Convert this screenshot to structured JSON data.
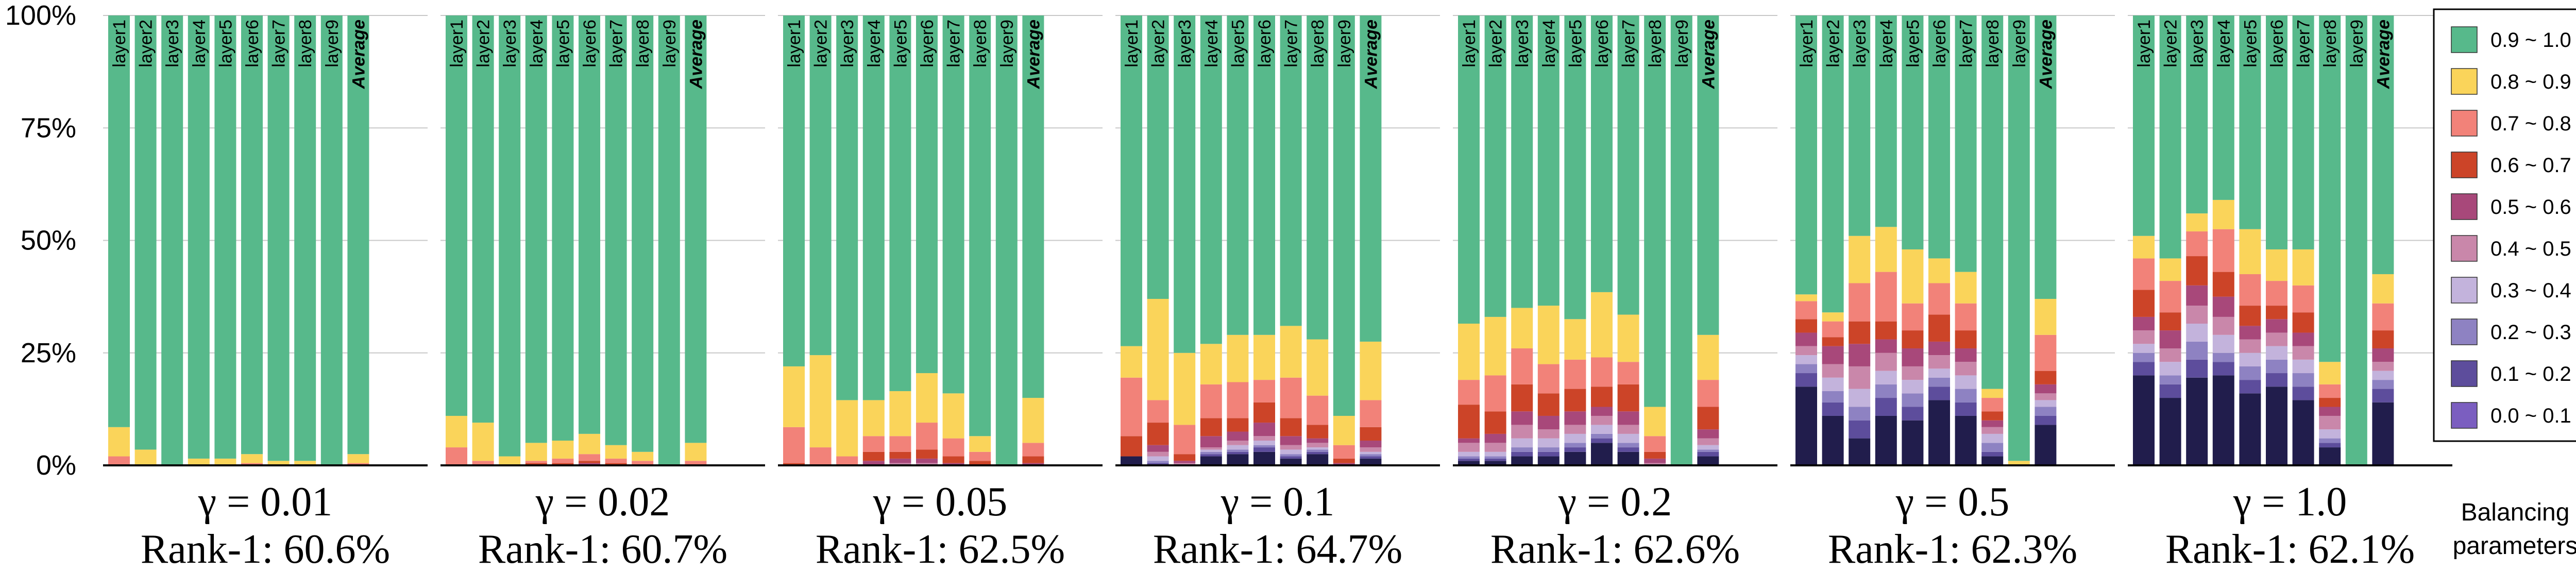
{
  "chart_data": {
    "type": "bar",
    "stacked": true,
    "percent": true,
    "categories": [
      "layer1",
      "layer2",
      "layer3",
      "layer4",
      "layer5",
      "layer6",
      "layer7",
      "layer8",
      "layer9",
      "Average"
    ],
    "ylim": [
      0,
      100
    ],
    "yticks": [
      "0%",
      "25%",
      "50%",
      "75%",
      "100%"
    ],
    "grid": true,
    "legend": {
      "title": "Balancing\nparameters",
      "placement": "right",
      "entries": [
        {
          "label": "0.9 ~ 1.0",
          "color": "#57b98b"
        },
        {
          "label": "0.8 ~ 0.9",
          "color": "#fad45a"
        },
        {
          "label": "0.7 ~ 0.8",
          "color": "#f28279"
        },
        {
          "label": "0.6 ~ 0.7",
          "color": "#cc4428"
        },
        {
          "label": "0.5 ~ 0.6",
          "color": "#a8487a"
        },
        {
          "label": "0.4 ~ 0.5",
          "color": "#c987aa"
        },
        {
          "label": "0.3 ~ 0.4",
          "color": "#c3b3dc"
        },
        {
          "label": "0.2 ~ 0.3",
          "color": "#8e82c2"
        },
        {
          "label": "0.1 ~ 0.2",
          "color": "#5d4d9c"
        },
        {
          "label": "0.0 ~ 0.1",
          "color": "#7b5ec0"
        }
      ]
    },
    "bin_order_bottom_to_top": [
      "0.0 ~ 0.1 (dark base)",
      "0.1 ~ 0.2",
      "0.2 ~ 0.3",
      "0.3 ~ 0.4",
      "0.4 ~ 0.5",
      "0.5 ~ 0.6",
      "0.6 ~ 0.7",
      "0.7 ~ 0.8",
      "0.8 ~ 0.9"
    ],
    "base_color": "#211d4c",
    "panels": [
      {
        "gamma": "γ = 0.01",
        "rank1": "Rank-1: 60.6%",
        "bars": [
          [
            0,
            0,
            0,
            0,
            0,
            0,
            0,
            2,
            6.5
          ],
          [
            0,
            0,
            0,
            0,
            0,
            0,
            0,
            0,
            3.5
          ],
          [
            0,
            0,
            0,
            0,
            0,
            0,
            0,
            0,
            0
          ],
          [
            0,
            0,
            0,
            0,
            0,
            0,
            0,
            0,
            1.5
          ],
          [
            0,
            0,
            0,
            0,
            0,
            0,
            0,
            0,
            1.5
          ],
          [
            0,
            0,
            0,
            0,
            0,
            0,
            0,
            0.5,
            2
          ],
          [
            0,
            0,
            0,
            0,
            0,
            0,
            0,
            0,
            1
          ],
          [
            0,
            0,
            0,
            0,
            0,
            0,
            0,
            0,
            1
          ],
          [
            0,
            0,
            0,
            0,
            0,
            0,
            0,
            0,
            0
          ],
          [
            0,
            0,
            0,
            0,
            0,
            0,
            0,
            0.5,
            2
          ]
        ]
      },
      {
        "gamma": "γ = 0.02",
        "rank1": "Rank-1: 60.7%",
        "bars": [
          [
            0,
            0,
            0,
            0,
            0,
            0,
            0,
            4,
            7
          ],
          [
            0,
            0,
            0,
            0,
            0,
            0,
            0,
            1,
            8.5
          ],
          [
            0,
            0,
            0,
            0,
            0,
            0,
            0,
            0,
            2
          ],
          [
            0,
            0,
            0,
            0,
            0,
            0,
            0.5,
            0.5,
            4
          ],
          [
            0,
            0,
            0,
            0,
            0,
            0,
            0.5,
            1,
            4
          ],
          [
            0,
            0,
            0,
            0,
            0,
            0.5,
            0.5,
            1.5,
            4.5
          ],
          [
            0,
            0,
            0,
            0,
            0,
            0,
            0.5,
            1,
            3
          ],
          [
            0,
            0,
            0,
            0,
            0,
            0,
            0,
            1,
            2
          ],
          [
            0,
            0,
            0,
            0,
            0,
            0,
            0,
            0,
            0
          ],
          [
            0,
            0,
            0,
            0,
            0,
            0,
            0,
            1,
            4
          ]
        ]
      },
      {
        "gamma": "γ = 0.05",
        "rank1": "Rank-1: 62.5%",
        "bars": [
          [
            0,
            0,
            0,
            0,
            0,
            0,
            0.5,
            8,
            13.5
          ],
          [
            0,
            0,
            0,
            0,
            0,
            0,
            0,
            4,
            20.5
          ],
          [
            0,
            0,
            0,
            0,
            0,
            0,
            0,
            2,
            12.5
          ],
          [
            0,
            0,
            0,
            0,
            0,
            1,
            2,
            3.5,
            8
          ],
          [
            0,
            0,
            0,
            0,
            0.5,
            1,
            1.5,
            3.5,
            10
          ],
          [
            0,
            0,
            0,
            0,
            0.5,
            1,
            2,
            6,
            11
          ],
          [
            0,
            0,
            0,
            0,
            0,
            0.5,
            1.5,
            4,
            10
          ],
          [
            0,
            0,
            0,
            0,
            0,
            0,
            1,
            2,
            3.5
          ],
          [
            0,
            0,
            0,
            0,
            0,
            0,
            0,
            0,
            0
          ],
          [
            0,
            0,
            0,
            0,
            0,
            0.5,
            1.5,
            3,
            10
          ]
        ]
      },
      {
        "gamma": "γ = 0.1",
        "rank1": "Rank-1: 64.7%",
        "bars": [
          [
            2,
            0,
            0,
            0,
            0,
            0,
            4.5,
            13,
            7
          ],
          [
            0,
            0.5,
            0.5,
            1,
            1,
            1.5,
            5,
            5,
            22.5
          ],
          [
            0,
            0,
            0,
            0,
            0.5,
            0.5,
            1.5,
            6.5,
            16
          ],
          [
            2,
            0.5,
            0.5,
            0.5,
            0.5,
            2.5,
            4,
            7.5,
            9
          ],
          [
            2.5,
            0.5,
            0.5,
            1,
            1,
            2,
            3,
            8,
            10.5
          ],
          [
            3,
            1,
            0.5,
            1,
            1,
            3,
            4.5,
            5,
            10
          ],
          [
            1.5,
            0.5,
            0.5,
            1,
            1,
            2,
            4,
            9,
            11.5
          ],
          [
            2.5,
            0.5,
            0.5,
            0.5,
            1,
            1,
            3,
            6.5,
            12.5
          ],
          [
            0,
            0,
            0,
            0,
            0,
            0.5,
            1,
            3,
            6.5
          ],
          [
            1.5,
            0.5,
            0.5,
            0.5,
            1,
            1.5,
            3,
            6,
            13
          ]
        ]
      },
      {
        "gamma": "γ = 0.2",
        "rank1": "Rank-1: 62.6%",
        "bars": [
          [
            1,
            0.5,
            0.5,
            1,
            2,
            1,
            7.5,
            5.5,
            12.5
          ],
          [
            1,
            0.5,
            0.5,
            1,
            2,
            2,
            5,
            8,
            13
          ],
          [
            2,
            1,
            1,
            2,
            3,
            3,
            6,
            8,
            9
          ],
          [
            2,
            1,
            1,
            2,
            2,
            3,
            5,
            6.5,
            13
          ],
          [
            3,
            1,
            1,
            2,
            2,
            3,
            5,
            6.5,
            9
          ],
          [
            5,
            1,
            1,
            2,
            2,
            2,
            4.5,
            6.5,
            14.5
          ],
          [
            3,
            1,
            1,
            2,
            2,
            3,
            6,
            5,
            10.5
          ],
          [
            0,
            0,
            0,
            0,
            0.5,
            1,
            1.5,
            3.5,
            6.5
          ],
          [
            0,
            0,
            0,
            0,
            0,
            0,
            0,
            0,
            0
          ],
          [
            2,
            1,
            0.5,
            1,
            1.5,
            2,
            5,
            6,
            10
          ]
        ]
      },
      {
        "gamma": "γ = 0.5",
        "rank1": "Rank-1: 62.3%",
        "bars": [
          [
            17.5,
            3,
            2,
            2,
            2,
            3,
            3,
            4,
            1.5
          ],
          [
            11,
            3,
            2.5,
            3,
            3,
            4,
            2,
            3.5,
            2
          ],
          [
            6,
            4,
            3,
            4,
            5,
            5,
            5,
            8.5,
            10.5
          ],
          [
            11,
            4,
            3,
            3,
            4,
            3,
            4,
            11,
            10
          ],
          [
            10,
            3,
            3,
            3,
            3,
            4,
            4,
            6,
            12
          ],
          [
            14.5,
            3,
            2,
            2,
            3,
            3,
            6,
            7,
            5.5
          ],
          [
            11,
            3,
            3,
            3,
            3,
            3,
            4,
            6,
            7
          ],
          [
            2,
            1,
            2,
            2,
            1.5,
            1.5,
            2,
            3,
            2
          ],
          [
            0,
            0,
            0,
            0,
            0,
            0,
            0,
            0,
            1
          ],
          [
            9,
            2,
            2,
            1.5,
            1.5,
            2,
            3,
            8,
            8
          ]
        ]
      },
      {
        "gamma": "γ = 1.0",
        "rank1": "Rank-1: 62.1%",
        "bars": [
          [
            20,
            3,
            2,
            2,
            3,
            3,
            6,
            7,
            5
          ],
          [
            15,
            3,
            2,
            3,
            3,
            4,
            4,
            7,
            5
          ],
          [
            19.5,
            4,
            4,
            4,
            4,
            4.5,
            6.5,
            5.5,
            4
          ],
          [
            20,
            3,
            2,
            4,
            4,
            4.5,
            5.5,
            9.5,
            6.5
          ],
          [
            16,
            3,
            3,
            3,
            3,
            3,
            4.5,
            7,
            10
          ],
          [
            17.5,
            3,
            3,
            3,
            3,
            3,
            3,
            5.5,
            7
          ],
          [
            14.5,
            3,
            3,
            3,
            3,
            3,
            4.5,
            6,
            8
          ],
          [
            4,
            1,
            1,
            2,
            3,
            2,
            2,
            3,
            5
          ],
          [
            0,
            0,
            0,
            0,
            0,
            0,
            0,
            0,
            0
          ],
          [
            14,
            3,
            2,
            2,
            2,
            3,
            4,
            6,
            6.5
          ]
        ]
      }
    ]
  }
}
